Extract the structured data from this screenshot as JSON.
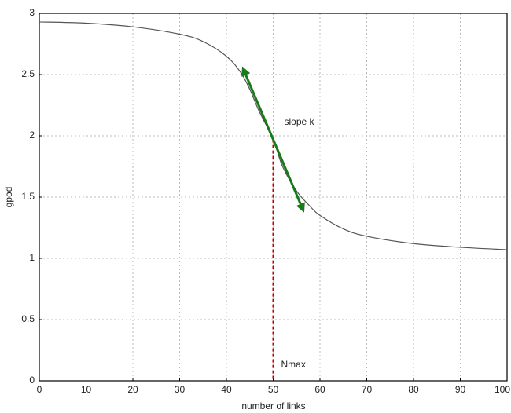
{
  "chart_data": {
    "type": "line",
    "x_label": "number of links",
    "y_label": "gpod",
    "annotations": [
      "slope k",
      "Nmax"
    ],
    "x": [
      0,
      10,
      20,
      30,
      35,
      40,
      43,
      45,
      47,
      50,
      52,
      55,
      58,
      60,
      65,
      70,
      80,
      90,
      100
    ],
    "series": [
      {
        "name": "gpod",
        "color": "#555555",
        "values": [
          2.93,
          2.92,
          2.89,
          2.83,
          2.77,
          2.65,
          2.52,
          2.38,
          2.2,
          1.97,
          1.75,
          1.55,
          1.42,
          1.35,
          1.24,
          1.18,
          1.12,
          1.09,
          1.07
        ]
      }
    ],
    "xlim": [
      0,
      100
    ],
    "xticks": [
      0,
      10,
      20,
      30,
      40,
      50,
      60,
      70,
      80,
      90,
      100
    ],
    "ylim": [
      0,
      3
    ],
    "yticks": [
      0,
      0.5,
      1,
      1.5,
      2,
      2.5,
      3
    ],
    "grid": true
  }
}
